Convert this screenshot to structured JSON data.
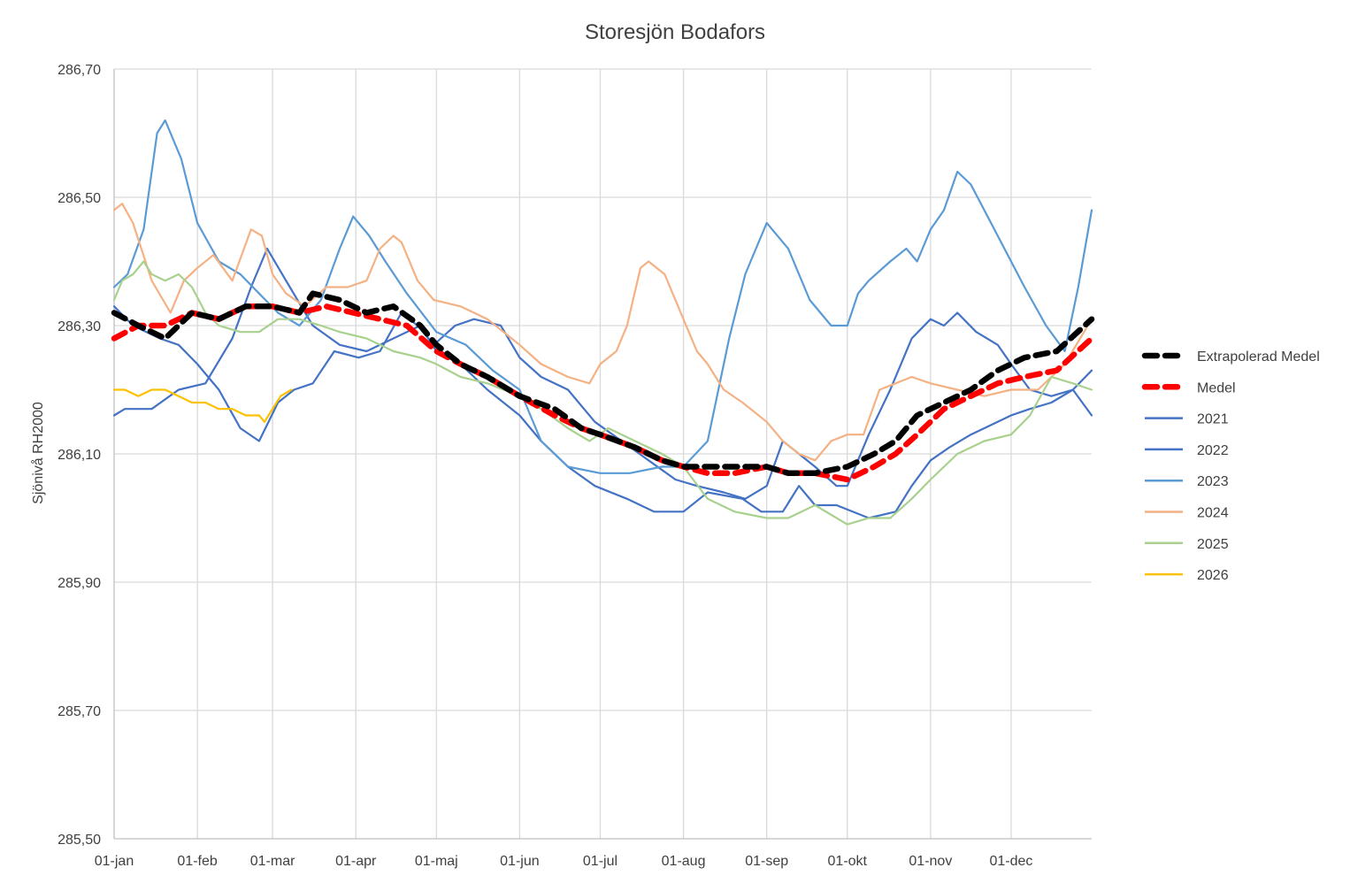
{
  "chart_data": {
    "type": "line",
    "title": "Storesjön Bodafors",
    "xlabel": "",
    "ylabel": "Sjönivå RH2000",
    "xlim": [
      1,
      365
    ],
    "ylim": [
      285.5,
      286.7
    ],
    "yticks": [
      285.5,
      285.7,
      285.9,
      286.1,
      286.3,
      286.5,
      286.7
    ],
    "ytick_labels": [
      "285,50",
      "285,70",
      "285,90",
      "286,10",
      "286,30",
      "286,50",
      "286,70"
    ],
    "xticks": [
      1,
      32,
      60,
      91,
      121,
      152,
      182,
      213,
      244,
      274,
      305,
      335
    ],
    "xtick_labels": [
      "01-jan",
      "01-feb",
      "01-mar",
      "01-apr",
      "01-maj",
      "01-jun",
      "01-jul",
      "01-aug",
      "01-sep",
      "01-okt",
      "01-nov",
      "01-dec"
    ],
    "grid": "vertical and horizontal",
    "legend_position": "right",
    "series": [
      {
        "name": "Extrapolerad Medel",
        "color": "#000000",
        "dashed": true,
        "x": [
          1,
          10,
          20,
          30,
          40,
          50,
          60,
          70,
          75,
          85,
          95,
          105,
          115,
          121,
          130,
          140,
          152,
          165,
          175,
          182,
          195,
          205,
          213,
          222,
          232,
          244,
          252,
          262,
          274,
          284,
          292,
          300,
          310,
          320,
          330,
          340,
          352,
          365
        ],
        "y": [
          286.32,
          286.3,
          286.28,
          286.32,
          286.31,
          286.33,
          286.33,
          286.32,
          286.35,
          286.34,
          286.32,
          286.33,
          286.3,
          286.27,
          286.24,
          286.22,
          286.19,
          286.17,
          286.14,
          286.13,
          286.11,
          286.09,
          286.08,
          286.08,
          286.08,
          286.08,
          286.07,
          286.07,
          286.08,
          286.1,
          286.12,
          286.16,
          286.18,
          286.2,
          286.23,
          286.25,
          286.26,
          286.31
        ]
      },
      {
        "name": "Medel",
        "color": "#ff0000",
        "dashed": true,
        "x": [
          1,
          10,
          20,
          30,
          40,
          50,
          60,
          70,
          80,
          90,
          100,
          110,
          121,
          130,
          140,
          152,
          165,
          175,
          182,
          195,
          205,
          213,
          222,
          232,
          244,
          252,
          262,
          274,
          284,
          292,
          300,
          310,
          320,
          330,
          340,
          352,
          365
        ],
        "y": [
          286.28,
          286.3,
          286.3,
          286.32,
          286.31,
          286.33,
          286.33,
          286.32,
          286.33,
          286.32,
          286.31,
          286.3,
          286.26,
          286.24,
          286.22,
          286.19,
          286.16,
          286.14,
          286.13,
          286.11,
          286.09,
          286.08,
          286.07,
          286.07,
          286.08,
          286.07,
          286.07,
          286.06,
          286.08,
          286.1,
          286.13,
          286.17,
          286.19,
          286.21,
          286.22,
          286.23,
          286.28
        ]
      },
      {
        "name": "2021",
        "color": "#4472c4",
        "dashed": false,
        "x": [
          1,
          8,
          18,
          25,
          32,
          40,
          48,
          55,
          62,
          68,
          75,
          83,
          92,
          100,
          108,
          114,
          120,
          128,
          135,
          145,
          152,
          160,
          170,
          180,
          190,
          200,
          210,
          218,
          228,
          236,
          244,
          250,
          256,
          262,
          270,
          274,
          282,
          290,
          298,
          305,
          310,
          315,
          322,
          330,
          335,
          342,
          350,
          358,
          365
        ],
        "y": [
          286.33,
          286.3,
          286.28,
          286.27,
          286.24,
          286.2,
          286.14,
          286.12,
          286.18,
          286.2,
          286.21,
          286.26,
          286.25,
          286.26,
          286.32,
          286.3,
          286.27,
          286.3,
          286.31,
          286.3,
          286.25,
          286.22,
          286.2,
          286.15,
          286.12,
          286.09,
          286.06,
          286.05,
          286.04,
          286.03,
          286.05,
          286.12,
          286.1,
          286.08,
          286.05,
          286.05,
          286.13,
          286.2,
          286.28,
          286.31,
          286.3,
          286.32,
          286.29,
          286.27,
          286.24,
          286.2,
          286.19,
          286.2,
          286.16
        ]
      },
      {
        "name": "2022",
        "color": "#4472c4",
        "dashed": false,
        "x": [
          1,
          5,
          15,
          25,
          35,
          45,
          52,
          58,
          65,
          75,
          85,
          95,
          105,
          115,
          121,
          130,
          140,
          152,
          160,
          170,
          180,
          192,
          202,
          213,
          222,
          235,
          242,
          250,
          256,
          262,
          270,
          282,
          292,
          298,
          305,
          312,
          320,
          330,
          335,
          342,
          350,
          358,
          365
        ],
        "y": [
          286.16,
          286.17,
          286.17,
          286.2,
          286.21,
          286.28,
          286.36,
          286.42,
          286.37,
          286.3,
          286.27,
          286.26,
          286.28,
          286.3,
          286.26,
          286.24,
          286.2,
          286.16,
          286.12,
          286.08,
          286.05,
          286.03,
          286.01,
          286.01,
          286.04,
          286.03,
          286.01,
          286.01,
          286.05,
          286.02,
          286.02,
          286.0,
          286.01,
          286.05,
          286.09,
          286.11,
          286.13,
          286.15,
          286.16,
          286.17,
          286.18,
          286.2,
          286.23
        ]
      },
      {
        "name": "2023",
        "color": "#5b9bd5",
        "dashed": false,
        "x": [
          1,
          6,
          12,
          17,
          20,
          26,
          32,
          40,
          48,
          55,
          62,
          70,
          78,
          85,
          90,
          96,
          102,
          110,
          121,
          132,
          142,
          152,
          160,
          170,
          182,
          193,
          205,
          213,
          222,
          230,
          236,
          240,
          244,
          252,
          260,
          268,
          274,
          278,
          282,
          290,
          296,
          300,
          305,
          310,
          315,
          320,
          330,
          340,
          348,
          355,
          360,
          365
        ],
        "y": [
          286.36,
          286.38,
          286.45,
          286.6,
          286.62,
          286.56,
          286.46,
          286.4,
          286.38,
          286.35,
          286.32,
          286.3,
          286.34,
          286.42,
          286.47,
          286.44,
          286.4,
          286.35,
          286.29,
          286.27,
          286.23,
          286.2,
          286.12,
          286.08,
          286.07,
          286.07,
          286.08,
          286.08,
          286.12,
          286.28,
          286.38,
          286.42,
          286.46,
          286.42,
          286.34,
          286.3,
          286.3,
          286.35,
          286.37,
          286.4,
          286.42,
          286.4,
          286.45,
          286.48,
          286.54,
          286.52,
          286.44,
          286.36,
          286.3,
          286.26,
          286.36,
          286.48
        ]
      },
      {
        "name": "2024",
        "color": "#f4b183",
        "dashed": false,
        "x": [
          1,
          4,
          8,
          15,
          22,
          27,
          32,
          38,
          45,
          52,
          56,
          60,
          65,
          72,
          80,
          88,
          95,
          100,
          105,
          108,
          114,
          120,
          130,
          140,
          152,
          160,
          170,
          178,
          182,
          188,
          192,
          197,
          200,
          206,
          212,
          218,
          222,
          228,
          235,
          244,
          250,
          256,
          262,
          268,
          274,
          280,
          286,
          292,
          298,
          305,
          315,
          325,
          335,
          345,
          355,
          365
        ],
        "y": [
          286.48,
          286.49,
          286.46,
          286.37,
          286.32,
          286.37,
          286.39,
          286.41,
          286.37,
          286.45,
          286.44,
          286.38,
          286.35,
          286.33,
          286.36,
          286.36,
          286.37,
          286.42,
          286.44,
          286.43,
          286.37,
          286.34,
          286.33,
          286.31,
          286.27,
          286.24,
          286.22,
          286.21,
          286.24,
          286.26,
          286.3,
          286.39,
          286.4,
          286.38,
          286.32,
          286.26,
          286.24,
          286.2,
          286.18,
          286.15,
          286.12,
          286.1,
          286.09,
          286.12,
          286.13,
          286.13,
          286.2,
          286.21,
          286.22,
          286.21,
          286.2,
          286.19,
          286.2,
          286.2,
          286.24,
          286.31
        ]
      },
      {
        "name": "2025",
        "color": "#a9d18e",
        "dashed": false,
        "x": [
          1,
          4,
          8,
          12,
          15,
          20,
          25,
          30,
          35,
          40,
          48,
          55,
          62,
          70,
          78,
          85,
          95,
          105,
          115,
          121,
          130,
          140,
          152,
          160,
          170,
          178,
          185,
          195,
          205,
          213,
          222,
          232,
          244,
          252,
          262,
          274,
          282,
          290,
          298,
          305,
          315,
          325,
          335,
          342,
          350,
          358,
          365
        ],
        "y": [
          286.34,
          286.37,
          286.38,
          286.4,
          286.38,
          286.37,
          286.38,
          286.36,
          286.32,
          286.3,
          286.29,
          286.29,
          286.31,
          286.31,
          286.3,
          286.29,
          286.28,
          286.26,
          286.25,
          286.24,
          286.22,
          286.21,
          286.19,
          286.17,
          286.14,
          286.12,
          286.14,
          286.12,
          286.1,
          286.08,
          286.03,
          286.01,
          286.0,
          286.0,
          286.02,
          285.99,
          286.0,
          286.0,
          286.03,
          286.06,
          286.1,
          286.12,
          286.13,
          286.16,
          286.22,
          286.21,
          286.2
        ]
      },
      {
        "name": "2026",
        "color": "#ffc000",
        "dashed": false,
        "x": [
          1,
          5,
          10,
          15,
          20,
          25,
          30,
          35,
          40,
          45,
          50,
          55,
          57,
          60,
          63,
          67
        ],
        "y": [
          286.2,
          286.2,
          286.19,
          286.2,
          286.2,
          286.19,
          286.18,
          286.18,
          286.17,
          286.17,
          286.16,
          286.16,
          286.15,
          286.17,
          286.19,
          286.2
        ]
      }
    ]
  }
}
